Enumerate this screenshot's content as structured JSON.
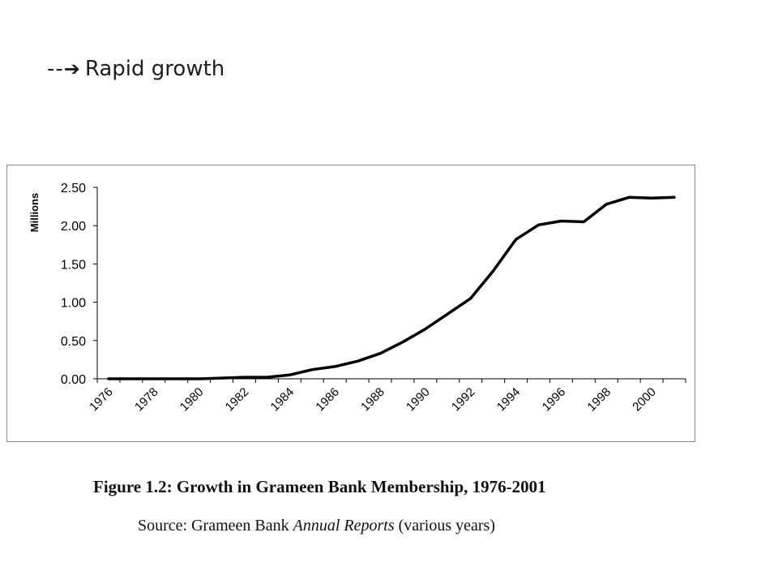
{
  "heading": {
    "dashes": "--",
    "arrow_icon": "right-arrow",
    "text": "Rapid growth"
  },
  "caption": "Figure 1.2: Growth in Grameen Bank Membership, 1976-2001",
  "source": {
    "prefix": "Source: Grameen Bank ",
    "italic": "Annual Reports",
    "suffix": " (various years)"
  },
  "chart_data": {
    "type": "line",
    "title": "",
    "xlabel": "",
    "ylabel": "Millions",
    "ylim": [
      0,
      2.5
    ],
    "yticks": [
      "0.00",
      "0.50",
      "1.00",
      "1.50",
      "2.00",
      "2.50"
    ],
    "xticks": [
      "1976",
      "1978",
      "1980",
      "1982",
      "1984",
      "1986",
      "1988",
      "1990",
      "1992",
      "1994",
      "1996",
      "1998",
      "2000"
    ],
    "grid": false,
    "legend": "none",
    "line_color": "#000000",
    "x": [
      1976,
      1977,
      1978,
      1979,
      1980,
      1981,
      1982,
      1983,
      1984,
      1985,
      1986,
      1987,
      1988,
      1989,
      1990,
      1991,
      1992,
      1993,
      1994,
      1995,
      1996,
      1997,
      1998,
      1999,
      2000,
      2001
    ],
    "series": [
      {
        "values": [
          0.0,
          0.0,
          0.0,
          0.0,
          0.0,
          0.01,
          0.02,
          0.02,
          0.05,
          0.12,
          0.16,
          0.23,
          0.33,
          0.48,
          0.65,
          0.85,
          1.05,
          1.41,
          1.82,
          2.01,
          2.06,
          2.05,
          2.28,
          2.37,
          2.36,
          2.37
        ]
      }
    ]
  }
}
